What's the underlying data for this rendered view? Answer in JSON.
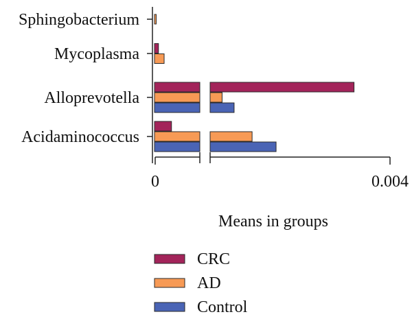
{
  "chart_data": {
    "type": "bar",
    "orientation": "horizontal",
    "broken_x_axis": true,
    "xlabel": "Means in groups",
    "ylabel": "",
    "x_tick_labels": [
      "0",
      "0.004"
    ],
    "xlim": [
      0,
      0.004
    ],
    "categories": [
      "Sphingobacterium",
      "Mycoplasma",
      "Alloprevotella",
      "Acidaminococcus"
    ],
    "series": [
      {
        "name": "CRC",
        "color": "#A3245A",
        "values": [
          0,
          7e-05,
          0.0034,
          0.0003
        ]
      },
      {
        "name": "AD",
        "color": "#F79A55",
        "values": [
          3e-05,
          0.00017,
          0.0012,
          0.0017
        ]
      },
      {
        "name": "Control",
        "color": "#4A64B5",
        "values": [
          0,
          0,
          0.0014,
          0.0021
        ]
      }
    ],
    "legend": {
      "position": "bottom-left",
      "items": [
        "CRC",
        "AD",
        "Control"
      ]
    }
  }
}
